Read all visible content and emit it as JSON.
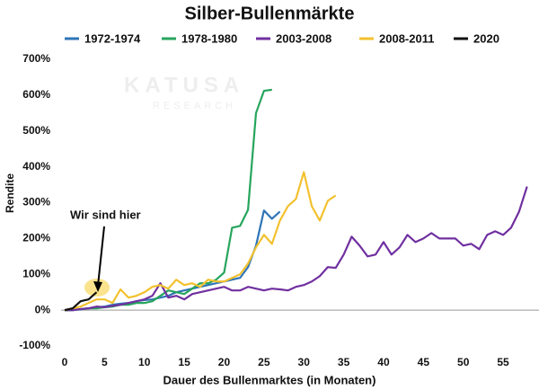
{
  "chart_data": {
    "type": "line",
    "title": "Silber-Bullenmärkte",
    "ylabel": "Rendite",
    "xlabel": "Dauer des Bullenmarktes (in Monaten)",
    "annotation": "Wir sind hier",
    "watermark": [
      "KATUSA",
      "RESEARCH"
    ],
    "xlim": [
      0,
      59.5
    ],
    "xticks": [
      0,
      5,
      10,
      15,
      20,
      25,
      30,
      35,
      40,
      45,
      50,
      55
    ],
    "ylim": [
      -100,
      700
    ],
    "yticks": [
      {
        "value": -100,
        "label": "-100%"
      },
      {
        "value": 0,
        "label": "0%"
      },
      {
        "value": 100,
        "label": "100%"
      },
      {
        "value": 200,
        "label": "200%"
      },
      {
        "value": 300,
        "label": "300%"
      },
      {
        "value": 400,
        "label": "400%"
      },
      {
        "value": 500,
        "label": "500%"
      },
      {
        "value": 600,
        "label": "600%"
      },
      {
        "value": 700,
        "label": "700%"
      }
    ],
    "grid": false,
    "legend": "top",
    "series": [
      {
        "name": "1972-1974",
        "color": "#2e75b6",
        "x": [
          0,
          1,
          2,
          3,
          4,
          5,
          6,
          7,
          8,
          9,
          10,
          11,
          12,
          13,
          14,
          15,
          16,
          17,
          18,
          19,
          20,
          21,
          22,
          23,
          24,
          25,
          26,
          27
        ],
        "values": [
          0,
          0,
          2,
          5,
          8,
          10,
          15,
          18,
          20,
          25,
          28,
          30,
          35,
          40,
          50,
          55,
          60,
          65,
          70,
          75,
          80,
          85,
          90,
          120,
          180,
          278,
          255,
          275
        ]
      },
      {
        "name": "1978-1980",
        "color": "#27a55d",
        "x": [
          0,
          1,
          2,
          3,
          4,
          5,
          6,
          7,
          8,
          9,
          10,
          11,
          12,
          13,
          14,
          15,
          16,
          17,
          18,
          19,
          20,
          21,
          22,
          23,
          24,
          25,
          26
        ],
        "values": [
          0,
          0,
          3,
          5,
          5,
          8,
          10,
          15,
          15,
          20,
          20,
          25,
          40,
          55,
          50,
          45,
          60,
          75,
          75,
          85,
          105,
          230,
          235,
          280,
          550,
          612,
          615
        ]
      },
      {
        "name": "2003-2008",
        "color": "#7030a0",
        "x": [
          0,
          1,
          2,
          3,
          4,
          5,
          6,
          7,
          8,
          9,
          10,
          11,
          12,
          13,
          14,
          15,
          16,
          17,
          18,
          19,
          20,
          21,
          22,
          23,
          24,
          25,
          26,
          27,
          28,
          29,
          30,
          31,
          32,
          33,
          34,
          35,
          36,
          37,
          38,
          39,
          40,
          41,
          42,
          43,
          44,
          45,
          46,
          47,
          48,
          49,
          50,
          51,
          52,
          53,
          54,
          55,
          56,
          57,
          58
        ],
        "values": [
          0,
          0,
          3,
          5,
          10,
          8,
          12,
          15,
          20,
          25,
          30,
          40,
          75,
          35,
          40,
          30,
          45,
          50,
          55,
          60,
          65,
          55,
          55,
          65,
          60,
          55,
          60,
          58,
          55,
          65,
          70,
          80,
          95,
          120,
          118,
          155,
          205,
          180,
          150,
          155,
          190,
          155,
          175,
          210,
          190,
          200,
          215,
          200,
          200,
          200,
          180,
          185,
          170,
          210,
          220,
          210,
          230,
          275,
          345
        ]
      },
      {
        "name": "2008-2011",
        "color": "#f2c12e",
        "x": [
          0,
          1,
          2,
          3,
          4,
          5,
          6,
          7,
          8,
          9,
          10,
          11,
          12,
          13,
          14,
          15,
          16,
          17,
          18,
          19,
          20,
          21,
          22,
          23,
          24,
          25,
          26,
          27,
          28,
          29,
          30,
          31,
          32,
          33,
          34
        ],
        "values": [
          0,
          5,
          10,
          20,
          30,
          30,
          20,
          58,
          35,
          40,
          50,
          65,
          70,
          60,
          85,
          70,
          75,
          65,
          85,
          80,
          80,
          90,
          100,
          130,
          175,
          210,
          185,
          250,
          290,
          310,
          385,
          290,
          250,
          305,
          320
        ]
      },
      {
        "name": "2020",
        "color": "#111111",
        "x": [
          0,
          1,
          2,
          3,
          4
        ],
        "values": [
          0,
          5,
          25,
          30,
          50
        ]
      }
    ]
  }
}
